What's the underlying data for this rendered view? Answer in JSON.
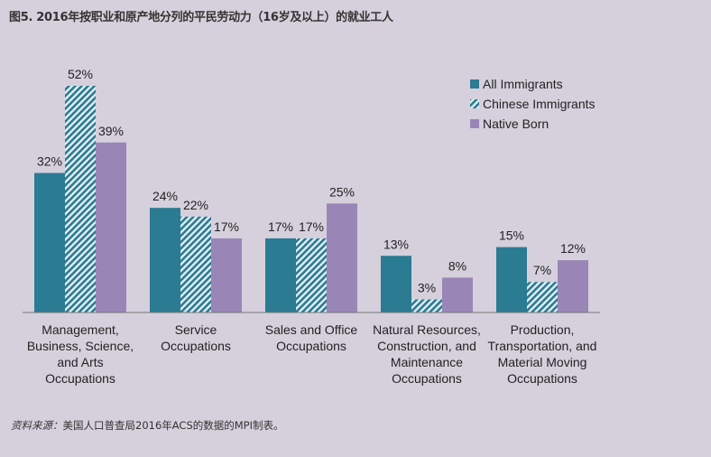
{
  "title": "图5. 2016年按职业和原产地分列的平民劳动力（16岁及以上）的就业工人",
  "source": {
    "label": "资料来源：",
    "text": "美国人口普查局2016年ACS的数据的MPI制表。"
  },
  "chart_data": {
    "type": "bar",
    "title": "图5. 2016年按职业和原产地分列的平民劳动力（16岁及以上）的就业工人",
    "categories": [
      [
        "Management,",
        "Business, Science,",
        "and Arts",
        "Occupations"
      ],
      [
        "Service",
        "Occupations"
      ],
      [
        "Sales and Office",
        "Occupations"
      ],
      [
        "Natural Resources,",
        "Construction, and",
        "Maintenance",
        "Occupations"
      ],
      [
        "Production,",
        "Transportation, and",
        "Material Moving",
        "Occupations"
      ]
    ],
    "series": [
      {
        "name": "All Immigrants",
        "values": [
          32,
          24,
          17,
          13,
          15
        ],
        "color": "#2b7b92",
        "pattern": "solid"
      },
      {
        "name": "Chinese Immigrants",
        "values": [
          52,
          22,
          17,
          3,
          7
        ],
        "color": "#2b7b92",
        "pattern": "diagonal-hatch"
      },
      {
        "name": "Native Born",
        "values": [
          39,
          17,
          25,
          8,
          12
        ],
        "color": "#9a86b6",
        "pattern": "solid"
      }
    ],
    "value_suffix": "%",
    "ylim": [
      0,
      52
    ],
    "grid": false,
    "legend": "top-right",
    "xlabel": "",
    "ylabel": ""
  }
}
